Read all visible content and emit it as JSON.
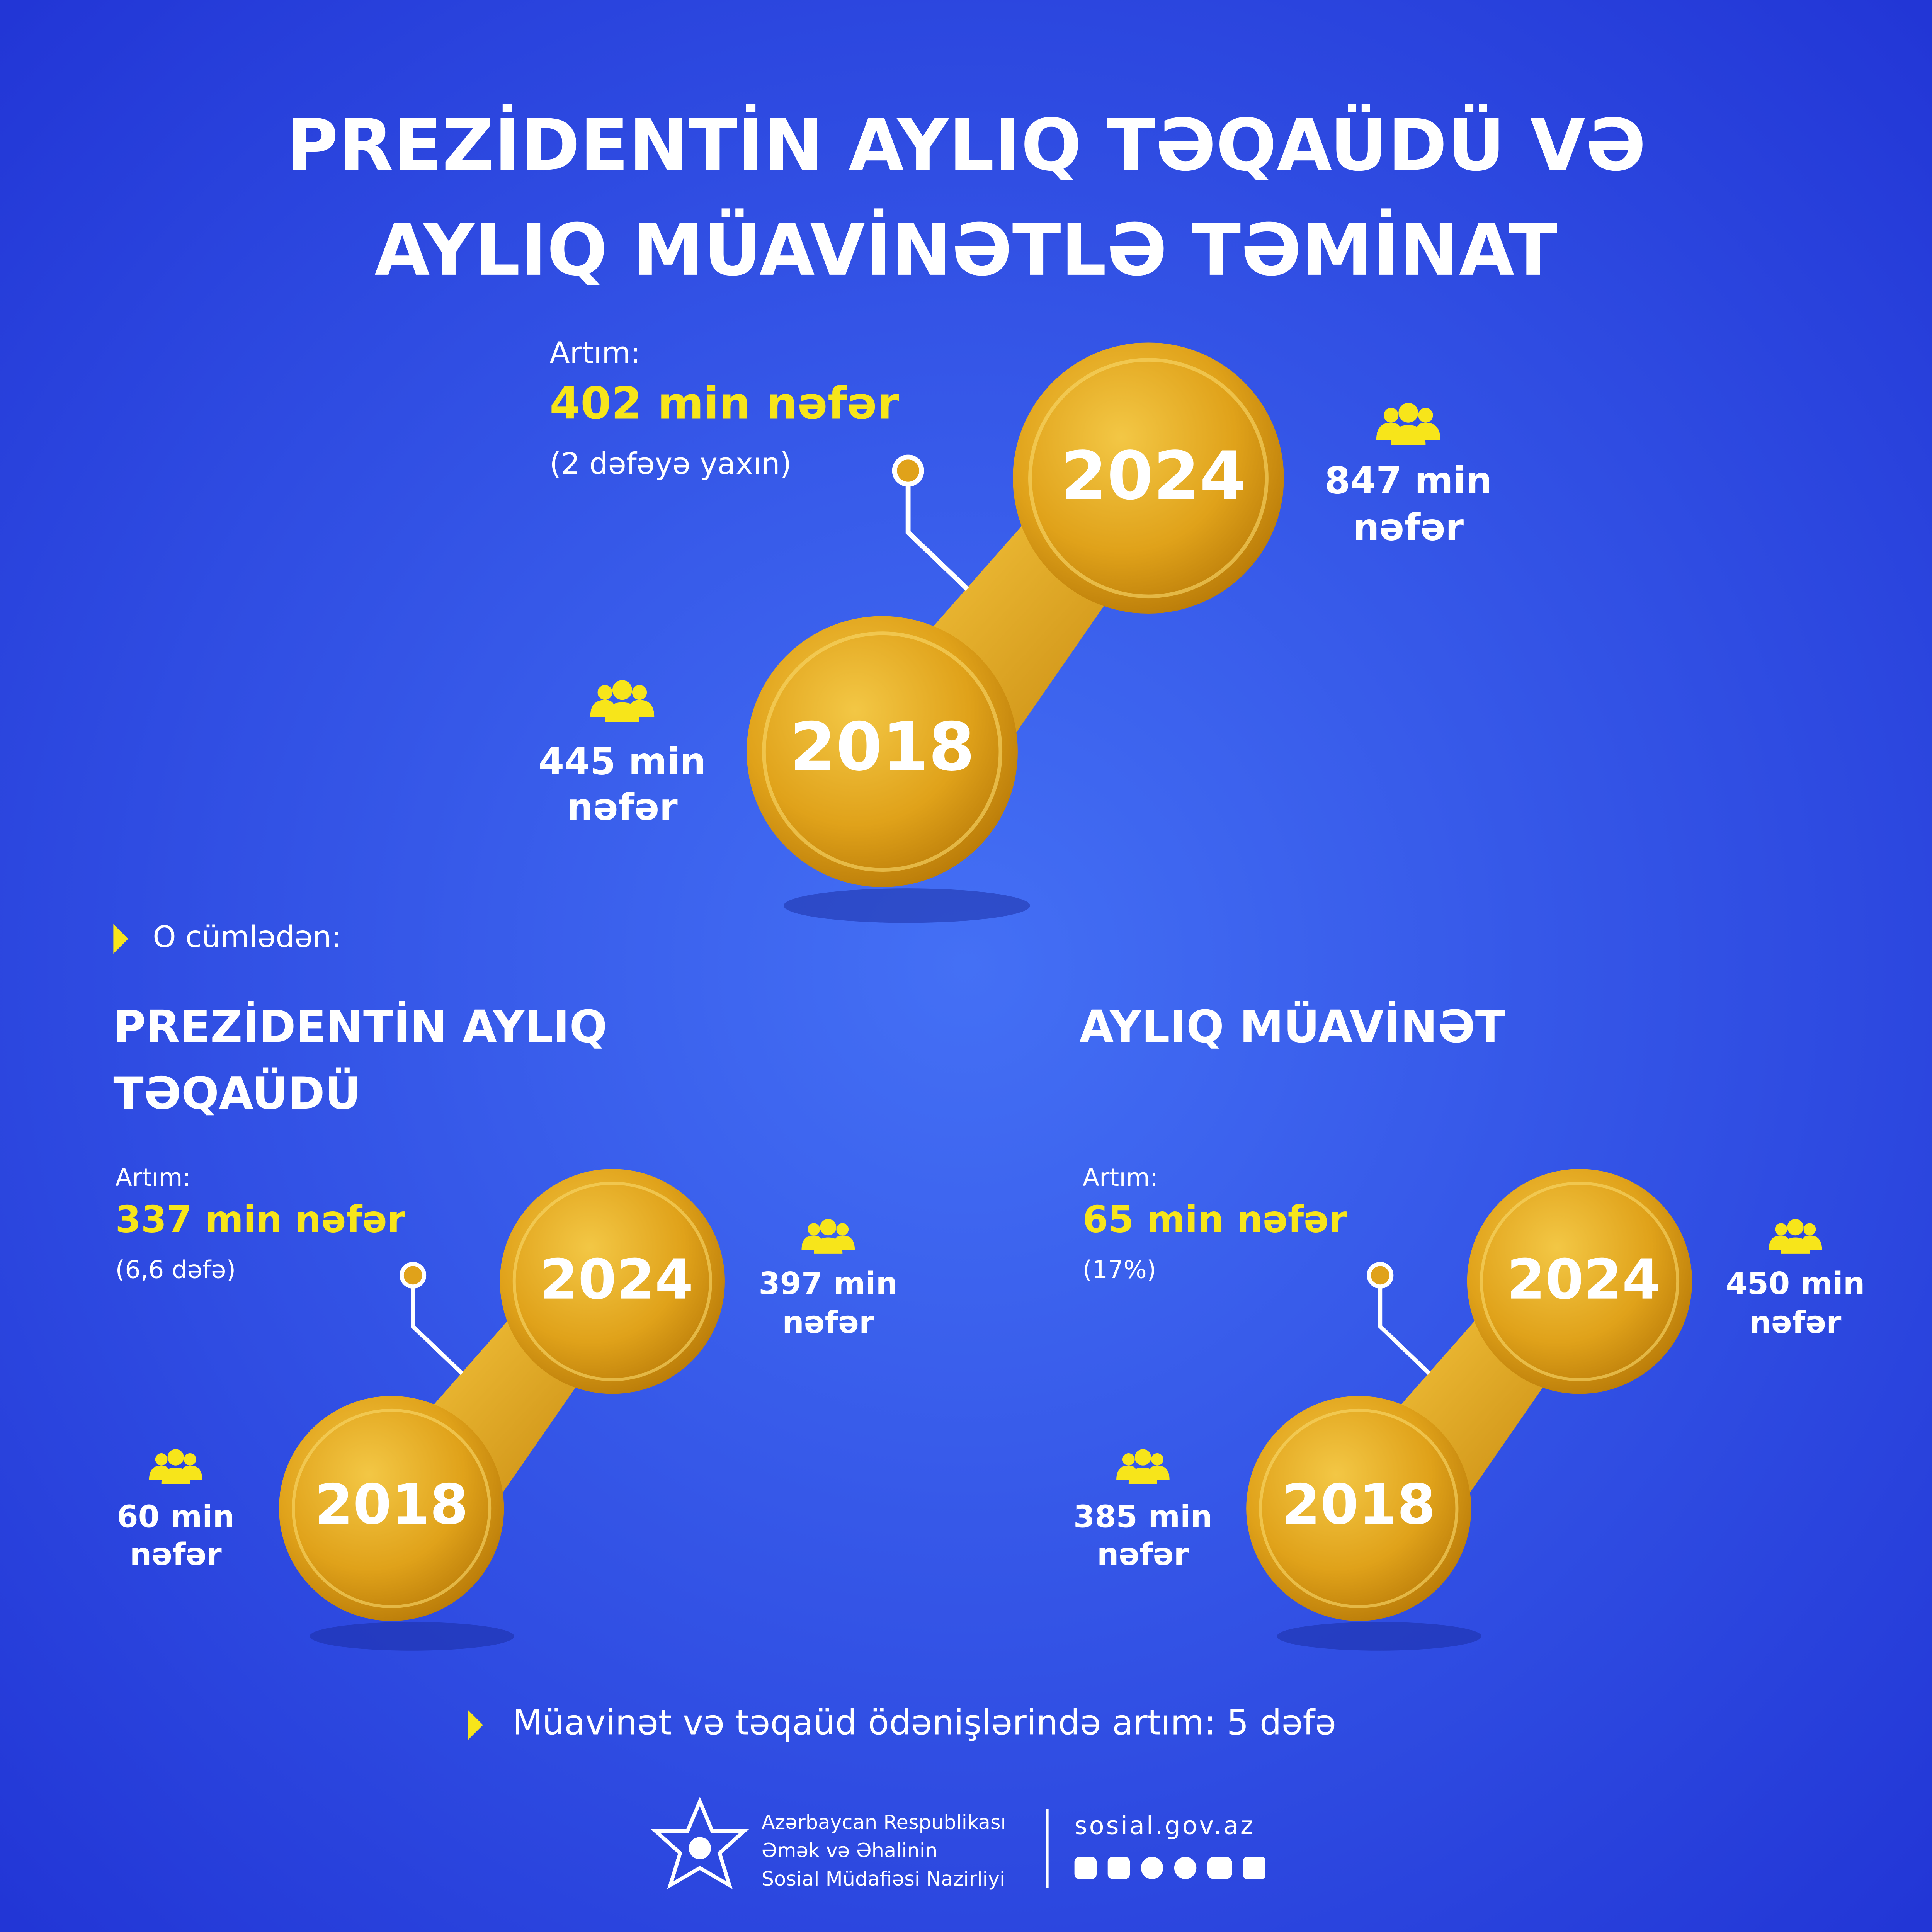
{
  "title": [
    "PREZİDENTİN AYLIQ TƏQAÜDÜ VƏ",
    "AYLIQ MÜAVİNƏTLƏ TƏMİNAT"
  ],
  "main": {
    "increase_label": "Artım:",
    "increase": "402 min nəfər",
    "note": "(2 dəfəyə yaxın)",
    "year_new": "2024",
    "count_new": [
      "847 min",
      "nəfər"
    ],
    "year_old": "2018",
    "count_old": [
      "445 min",
      "nəfər"
    ]
  },
  "including": "O cümlədən:",
  "sections": [
    {
      "title": [
        "PREZİDENTİN AYLIQ",
        "TƏQAÜDÜ"
      ],
      "increase_label": "Artım:",
      "increase": "337 min nəfər",
      "note": "(6,6 dəfə)",
      "year_new": "2024",
      "count_new": [
        "397 min",
        "nəfər"
      ],
      "year_old": "2018",
      "count_old": [
        "60 min",
        "nəfər"
      ]
    },
    {
      "title": [
        "AYLIQ MÜAVİNƏT"
      ],
      "increase_label": "Artım:",
      "increase": "65 min nəfər",
      "note": "(17%)",
      "year_new": "2024",
      "count_new": [
        "450 min",
        "nəfər"
      ],
      "year_old": "2018",
      "count_old": [
        "385 min",
        "nəfər"
      ]
    }
  ],
  "footer_note": "Müavinət və təqaüd ödənişlərində artım: 5 dəfə",
  "ministry": [
    "Azərbaycan Respublikası",
    "Əmək və Əhalinin",
    "Sosial Müdafiəsi Nazirliyi"
  ],
  "website": "sosial.gov.az"
}
